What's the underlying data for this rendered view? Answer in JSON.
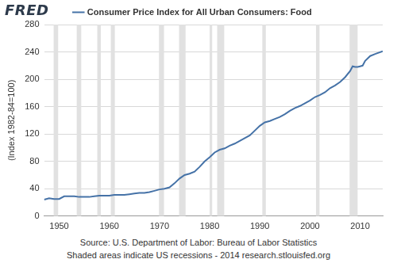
{
  "logo": "FRED",
  "notes": [
    "Source: U.S. Department of Labor: Bureau of Labor Statistics",
    "Shaded areas indicate US recessions - 2014 research.stlouisfed.org"
  ],
  "chart_data": {
    "type": "line",
    "y_label": "(Index 1982-84=100)",
    "legend": "top",
    "grid": "y",
    "x": [
      1947,
      1948,
      1949,
      1950,
      1951,
      1952,
      1953,
      1954,
      1955,
      1956,
      1957,
      1958,
      1959,
      1960,
      1961,
      1962,
      1963,
      1964,
      1965,
      1966,
      1967,
      1968,
      1969,
      1970,
      1971,
      1972,
      1973,
      1974,
      1975,
      1976,
      1977,
      1978,
      1979,
      1980,
      1981,
      1982,
      1983,
      1984,
      1985,
      1986,
      1987,
      1988,
      1989,
      1990,
      1991,
      1992,
      1993,
      1994,
      1995,
      1996,
      1997,
      1998,
      1999,
      2000,
      2001,
      2002,
      2003,
      2004,
      2005,
      2006,
      2007,
      2008,
      2008.5,
      2009,
      2009.5,
      2010,
      2010.5,
      2011,
      2012,
      2013,
      2014.5
    ],
    "series": [
      {
        "name": "Consumer Price Index for All Urban Consumers: Food",
        "color": "#4572a7",
        "values": [
          24,
          26,
          25,
          25,
          29,
          29,
          29,
          28,
          28,
          28,
          29,
          30,
          30,
          30,
          31,
          31,
          31,
          32,
          33,
          34,
          34,
          35,
          37,
          39,
          40,
          42,
          48,
          55,
          60,
          62,
          65,
          72,
          80,
          86,
          93,
          97,
          99,
          103,
          106,
          110,
          114,
          118,
          125,
          132,
          137,
          139,
          142,
          145,
          149,
          154,
          158,
          161,
          165,
          169,
          174,
          177,
          181,
          187,
          191,
          196,
          203,
          212,
          219,
          218,
          218,
          219,
          220,
          227,
          234,
          237,
          241
        ]
      }
    ],
    "recessions": [
      {
        "start": 1948.9,
        "end": 1949.8
      },
      {
        "start": 1953.5,
        "end": 1954.4
      },
      {
        "start": 1957.6,
        "end": 1958.3
      },
      {
        "start": 1960.3,
        "end": 1961.1
      },
      {
        "start": 1969.9,
        "end": 1970.9
      },
      {
        "start": 1973.9,
        "end": 1975.2
      },
      {
        "start": 1980.0,
        "end": 1980.5
      },
      {
        "start": 1981.5,
        "end": 1982.9
      },
      {
        "start": 1990.5,
        "end": 1991.2
      },
      {
        "start": 2001.2,
        "end": 2001.9
      },
      {
        "start": 2007.9,
        "end": 2009.5
      }
    ],
    "xlim": [
      1947,
      2014.5
    ],
    "xticks": [
      1950,
      1960,
      1970,
      1980,
      1990,
      2000,
      2010
    ],
    "ylim": [
      0,
      280
    ],
    "yticks": [
      0,
      40,
      80,
      120,
      160,
      200,
      240,
      280
    ]
  }
}
